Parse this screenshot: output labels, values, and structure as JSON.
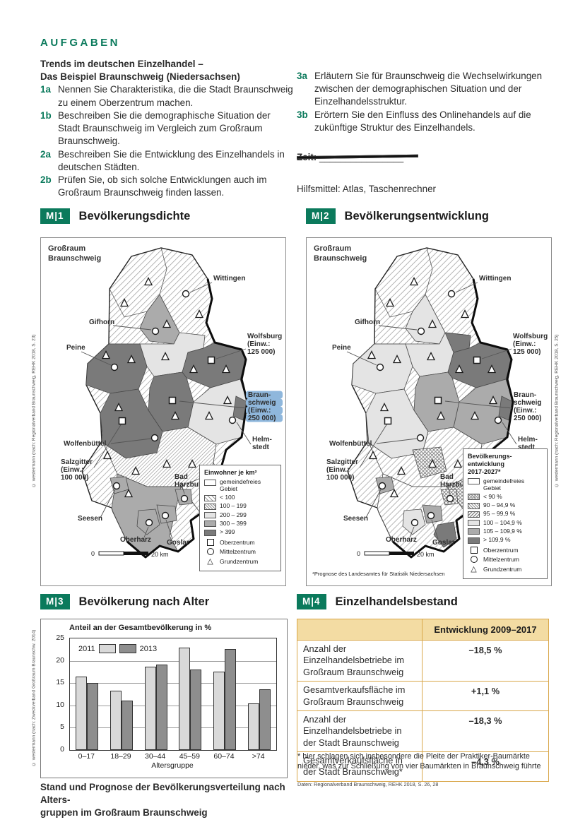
{
  "page_header": {
    "aufgaben": "AUFGABEN"
  },
  "tasks": {
    "title_l1": "Trends im deutschen Einzelhandel –",
    "title_l2": "Das Beispiel Braunschweig (Niedersachsen)",
    "left": [
      {
        "num": "1a",
        "text": "Nennen Sie Charakteristika, die die Stadt Braunschweig zu einem Oberzentrum machen."
      },
      {
        "num": "1b",
        "text": "Beschreiben Sie die demographische Situation der Stadt Braunschweig im Vergleich zum Großraum Braunschweig."
      },
      {
        "num": "2a",
        "text": "Beschreiben Sie die Entwicklung des Einzelhandels in deutschen Städten."
      },
      {
        "num": "2b",
        "text": "Prüfen Sie, ob sich solche Entwicklungen auch im Großraum Braunschweig finden lassen."
      }
    ],
    "right": [
      {
        "num": "3a",
        "text": "Erläutern Sie für Braunschweig die Wechselwirkungen zwischen der demographischen Situation und der Einzelhandelsstruktur."
      },
      {
        "num": "3b",
        "text": "Erörtern Sie den Einfluss des Onlinehandels auf die zukünftige Struktur des Einzelhandels."
      }
    ],
    "zeit_label": "Zeit:",
    "zeit_blank": "________________",
    "hilfsmittel": "Hilfsmittel: Atlas, Taschenrechner"
  },
  "cities": {
    "grossraum_l1": "Großraum",
    "grossraum_l2": "Braunschweig",
    "wittingen": "Wittingen",
    "gifhorn": "Gifhorn",
    "wolfsburg_l1": "Wolfsburg",
    "wolfsburg_l2": "(Einw.:",
    "wolfsburg_l3": "125 000)",
    "peine": "Peine",
    "braunschweig_l1": "Braun-",
    "braunschweig_l2": "schweig",
    "braunschweig_l3": "(Einw.:",
    "braunschweig_l4": "250 000)",
    "wolfenbuettel": "Wolfenbüttel",
    "helmstedt_l1": "Helm-",
    "helmstedt_l2": "stedt",
    "salzgitter_l1": "Salzgitter",
    "salzgitter_l2": "(Einw.:",
    "salzgitter_l3": "100 000)",
    "badharzburg_l1": "Bad",
    "badharzburg_l2": "Harzburg",
    "seesen": "Seesen",
    "oberharz": "Oberharz",
    "goslar": "Goslar"
  },
  "map_scale": {
    "start": "0",
    "end": "20 km"
  },
  "map_symbols": [
    "Oberzentrum",
    "Mittelzentrum",
    "Grundzentrum"
  ],
  "m1": {
    "tag": "M|1",
    "title": "Bevölkerungsdichte",
    "legend_title": "Einwohner je km²",
    "legend_entries": [
      "gemeindefreies Gebiet",
      "< 100",
      "100 – 199",
      "200 – 299",
      "300 – 399",
      "> 399"
    ],
    "credit": "© westermann (nach: Regionalverband Braunschweig, REHK 2018, S. 23)"
  },
  "m2": {
    "tag": "M|2",
    "title": "Bevölkerungsentwicklung",
    "legend_title_l1": "Bevölkerungs-",
    "legend_title_l2": "entwicklung",
    "legend_title_l3": "2017-2027*",
    "legend_entries": [
      "gemeindefreies Gebiet",
      "< 90 %",
      "90 – 94,9 %",
      "95 – 99,9 %",
      "100 – 104,9 %",
      "105 – 109,9 %",
      "> 109,9 %"
    ],
    "footnote": "*Prognose des Landesamtes für Statistik Niedersachsen",
    "credit": "© westermann (nach: Regionalverband Braunschweig, REHK 2018, S. 25)"
  },
  "m3": {
    "tag": "M|3",
    "title": "Bevölkerung nach Alter",
    "chart_data": {
      "type": "bar",
      "title": "Anteil an der Gesamtbevölkerung in %",
      "categories": [
        "0–17",
        "18–29",
        "30–44",
        "45–59",
        "60–74",
        ">74"
      ],
      "series": [
        {
          "name": "2011",
          "values": [
            16.4,
            13.3,
            18.7,
            23.0,
            17.5,
            10.5
          ]
        },
        {
          "name": "2013",
          "values": [
            15.0,
            11.0,
            19.1,
            18.1,
            22.6,
            13.6
          ]
        }
      ],
      "xlabel": "Altersgruppe",
      "ylabel": "Anteil an der Gesamtbevölkerung in %",
      "ylim": [
        0,
        25
      ],
      "yticks": [
        0,
        5,
        10,
        15,
        20,
        25
      ],
      "grid": true,
      "legend_position": "top-left",
      "colors": {
        "2011": "#d9d9d9",
        "2013": "#8e8e8e"
      }
    },
    "caption_l1": "Stand und Prognose der Bevölkerungsverteilung nach Alters-",
    "caption_l2": "gruppen im Großraum Braunschweig",
    "credit": "© westermann (nach: Zweckverband Großraum Braunschw. 2014)"
  },
  "m4": {
    "tag": "M|4",
    "title": "Einzelhandelsbestand",
    "col_header": "Entwicklung 2009–2017",
    "rows": [
      {
        "label": "Anzahl der Einzelhandelsbetriebe im Großraum Braunschweig",
        "value": "–18,5 %"
      },
      {
        "label": "Gesamtverkaufsfläche im Großraum Braunschweig",
        "value": "+1,1 %"
      },
      {
        "label": "Anzahl der Einzelhandelsbetriebe in der Stadt Braunschweig",
        "value": "–18,3 %"
      },
      {
        "label": "Gesamtverkaufsfläche in der Stadt Braunschweig*",
        "value": "–4,3 %"
      }
    ],
    "footnote": "* hier schlagen sich insbesondere die Pleite der Praktiker-Baumärkte nieder, was zur Schließung von vier Baumärkten in Braunschweig führte",
    "source": "Daten: Regionalverband Braunschweig, REHK 2018, S. 26, 28"
  },
  "colors": {
    "accent_green": "#0b7a5c",
    "table_border": "#D9A74A",
    "table_header_bg": "#F3DCA3",
    "highlight_blue": "#8FB7DC"
  }
}
